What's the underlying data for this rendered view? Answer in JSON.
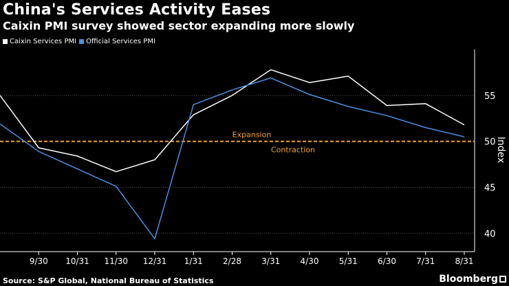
{
  "header": {
    "title": "China's Services Activity Eases",
    "subtitle": "Caixin PMI survey showed sector expanding more slowly"
  },
  "legend": [
    {
      "label": "Caixin Services PMI",
      "color": "#ffffff"
    },
    {
      "label": "Official Services PMI",
      "color": "#4a90e2"
    }
  ],
  "footer": {
    "source": "Source: S&P Global, National Bureau of Statistics",
    "brand": "Bloomberg"
  },
  "chart_data": {
    "type": "line",
    "title": "China's Services Activity Eases",
    "subtitle": "Caixin PMI survey showed sector expanding more slowly",
    "xlabel": "",
    "ylabel": "Index",
    "ylim": [
      38,
      60
    ],
    "yticks": [
      40,
      45,
      50,
      55
    ],
    "categories": [
      "9/30",
      "10/31",
      "11/30",
      "12/31",
      "1/31",
      "2/28",
      "3/31",
      "4/30",
      "5/31",
      "6/30",
      "7/31",
      "8/31"
    ],
    "series": [
      {
        "name": "Caixin Services PMI",
        "color": "#ffffff",
        "points": [
          {
            "x": "8/31",
            "y": 55.0
          },
          {
            "x": "9/30",
            "y": 49.3
          },
          {
            "x": "10/31",
            "y": 48.4
          },
          {
            "x": "11/30",
            "y": 46.7
          },
          {
            "x": "12/31",
            "y": 48.0
          },
          {
            "x": "1/31",
            "y": 52.9
          },
          {
            "x": "2/28",
            "y": 55.0
          },
          {
            "x": "3/31",
            "y": 57.8
          },
          {
            "x": "4/30",
            "y": 56.4
          },
          {
            "x": "5/31",
            "y": 57.1
          },
          {
            "x": "6/30",
            "y": 53.9
          },
          {
            "x": "7/31",
            "y": 54.1
          },
          {
            "x": "8/31",
            "y": 51.8
          }
        ]
      },
      {
        "name": "Official Services PMI",
        "color": "#4a90e2",
        "points": [
          {
            "x": "8/31",
            "y": 51.9
          },
          {
            "x": "9/30",
            "y": 48.9
          },
          {
            "x": "10/31",
            "y": 47.0
          },
          {
            "x": "11/30",
            "y": 45.1
          },
          {
            "x": "12/31",
            "y": 39.4
          },
          {
            "x": "1/31",
            "y": 54.0
          },
          {
            "x": "2/28",
            "y": 55.6
          },
          {
            "x": "3/31",
            "y": 56.9
          },
          {
            "x": "4/30",
            "y": 55.1
          },
          {
            "x": "5/31",
            "y": 53.8
          },
          {
            "x": "6/30",
            "y": 52.8
          },
          {
            "x": "7/31",
            "y": 51.5
          },
          {
            "x": "8/31",
            "y": 50.5
          }
        ]
      }
    ],
    "reference_line": {
      "y": 50,
      "color": "#f5a623",
      "label_above": "Expansion",
      "label_below": "Contraction"
    }
  }
}
